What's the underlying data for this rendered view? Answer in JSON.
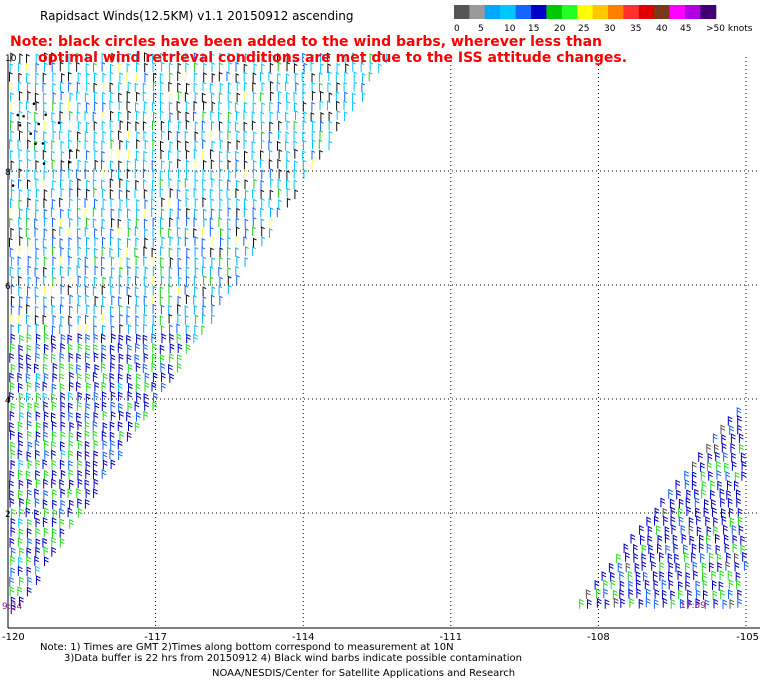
{
  "title": "Rapidsact Winds(12.5KM) v1.1 20150912 ascending",
  "note_line1": "Note: black circles have been added to the wind barbs, wherever less than",
  "note_line2": "optimal wind retrieval conditions are met due to the ISS attitude changes.",
  "legend": {
    "colors": [
      "#555555",
      "#9a9a9a",
      "#00a8ff",
      "#00c8ff",
      "#1464ff",
      "#0000c8",
      "#00c800",
      "#22ff22",
      "#ffff00",
      "#ffc800",
      "#ff8000",
      "#ff3030",
      "#e00000",
      "#7a3a1a",
      "#ff00ff",
      "#b000e0",
      "#400070"
    ],
    "labels": [
      "0",
      "5",
      "10",
      "15",
      "20",
      "25",
      "30",
      "35",
      "40",
      "45",
      ">50 knots"
    ]
  },
  "axes": {
    "x_ticks": [
      "-120",
      "-117",
      "-114",
      "-111",
      "-108",
      "-105"
    ],
    "x_tick_values": [
      -120,
      -117,
      -114,
      -111,
      -108,
      -105
    ],
    "y_ticks": [
      "10",
      "8",
      "6",
      "4",
      "2"
    ],
    "y_tick_values": [
      10,
      8,
      6,
      4,
      2
    ],
    "lon_range": [
      -120,
      -105
    ],
    "lat_range": [
      0,
      10
    ]
  },
  "time_labels": {
    "left": "9:34",
    "right": "17:39"
  },
  "footnote_line1": "Note: 1) Times are GMT 2)Times along bottom correspond to measurement at 10N",
  "footnote_line2": "3)Data buffer is 22 hrs from 20150912 4) Black wind barbs indicate possible contamination",
  "credit": "NOAA/NESDIS/Center for Satellite Applications and Research",
  "swaths": {
    "left": {
      "polygon_lonlat": [
        [
          -120,
          10
        ],
        [
          -112.2,
          10
        ],
        [
          -120,
          0
        ]
      ]
    },
    "right": {
      "polygon_lonlat": [
        [
          -105,
          3.9
        ],
        [
          -105,
          0.2
        ],
        [
          -108.5,
          0.2
        ]
      ]
    }
  }
}
